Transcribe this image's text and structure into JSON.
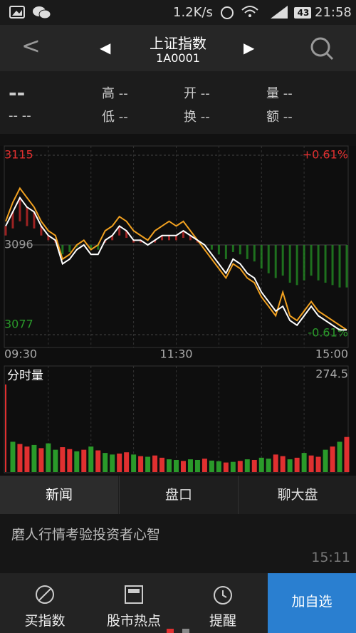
{
  "status_bar": {
    "speed": "1.2K/s",
    "battery": "43",
    "time": "21:58"
  },
  "header": {
    "back": "<",
    "prev": "◀",
    "title": "上证指数",
    "code": "1A0001",
    "next": "▶"
  },
  "quote": {
    "price": "--",
    "change": "-- --",
    "high": "高 --",
    "low": "低 --",
    "open": "开 --",
    "turnover": "换 --",
    "volume": "量 --",
    "amount": "额 --"
  },
  "chart_data": [
    {
      "type": "line",
      "x": [
        0,
        5,
        10,
        15,
        20,
        25,
        30,
        35,
        40,
        45,
        50,
        55,
        60,
        65,
        70,
        75,
        80,
        85,
        90,
        95,
        100,
        105,
        110,
        115,
        120,
        125,
        130,
        135,
        140,
        145,
        150,
        155,
        160,
        165,
        170,
        175,
        180,
        185,
        190,
        195,
        200,
        205,
        210,
        215,
        220,
        225,
        230,
        235,
        240
      ],
      "xlim": [
        0,
        240
      ],
      "xticks": [
        {
          "value": 0,
          "label": "09:30"
        },
        {
          "value": 120,
          "label": "11:30"
        },
        {
          "value": 240,
          "label": "15:00"
        }
      ],
      "ylim": [
        3077,
        3115
      ],
      "yticks": [
        3077,
        3096,
        3115
      ],
      "y2lim": [
        -0.61,
        0.61
      ],
      "y2ticks": [
        {
          "value": 0.61,
          "label": "+0.61%"
        },
        {
          "value": -0.61,
          "label": "-0.61%"
        }
      ],
      "series": [
        {
          "color": "#ffffff",
          "values": [
            3100,
            3103,
            3106,
            3104,
            3103,
            3100,
            3098,
            3097,
            3092,
            3093,
            3095,
            3096,
            3094,
            3094,
            3097,
            3098,
            3100,
            3099,
            3097,
            3097,
            3096,
            3097,
            3098,
            3098,
            3098,
            3099,
            3098,
            3097,
            3096,
            3094,
            3092,
            3090,
            3093,
            3092,
            3090,
            3089,
            3086,
            3084,
            3082,
            3083,
            3080,
            3079,
            3081,
            3083,
            3081,
            3080,
            3079,
            3078,
            3078
          ]
        },
        {
          "color": "#f0a020",
          "values": [
            3101,
            3105,
            3108,
            3106,
            3104,
            3101,
            3099,
            3098,
            3093,
            3094,
            3096,
            3097,
            3095,
            3096,
            3099,
            3100,
            3102,
            3101,
            3099,
            3098,
            3097,
            3099,
            3100,
            3101,
            3100,
            3101,
            3099,
            3097,
            3095,
            3093,
            3091,
            3089,
            3092,
            3091,
            3089,
            3088,
            3085,
            3083,
            3081,
            3086,
            3081,
            3080,
            3082,
            3084,
            3082,
            3081,
            3080,
            3079,
            3078
          ]
        }
      ]
    },
    {
      "type": "bar",
      "title": "分时量",
      "x": [
        0,
        5,
        10,
        15,
        20,
        25,
        30,
        35,
        40,
        45,
        50,
        55,
        60,
        65,
        70,
        75,
        80,
        85,
        90,
        95,
        100,
        105,
        110,
        115,
        120,
        125,
        130,
        135,
        140,
        145,
        150,
        155,
        160,
        165,
        170,
        175,
        180,
        185,
        190,
        195,
        200,
        205,
        210,
        215,
        220,
        225,
        230,
        235,
        240
      ],
      "xlim": [
        0,
        240
      ],
      "ylim": [
        0,
        274.5
      ],
      "yticks": [
        274.5
      ],
      "up_color": "#e03030",
      "down_color": "#2a9a2a",
      "values": [
        274.5,
        95,
        88,
        80,
        85,
        75,
        90,
        70,
        78,
        72,
        65,
        70,
        80,
        68,
        60,
        55,
        58,
        62,
        55,
        50,
        48,
        52,
        45,
        40,
        38,
        35,
        40,
        38,
        42,
        36,
        34,
        30,
        32,
        35,
        40,
        38,
        45,
        42,
        55,
        50,
        40,
        45,
        60,
        52,
        48,
        70,
        80,
        95,
        110
      ],
      "rising": [
        true,
        false,
        true,
        true,
        false,
        true,
        false,
        false,
        true,
        true,
        false,
        true,
        false,
        true,
        false,
        false,
        true,
        true,
        false,
        true,
        false,
        true,
        true,
        false,
        false,
        true,
        false,
        false,
        true,
        false,
        false,
        true,
        false,
        true,
        false,
        true,
        false,
        false,
        true,
        true,
        false,
        true,
        false,
        true,
        true,
        false,
        true,
        false,
        true
      ]
    }
  ],
  "tabs": [
    "新闻",
    "盘口",
    "聊大盘"
  ],
  "news": {
    "headline": "磨人行情考验投资者心智",
    "time": "15:11"
  },
  "nav": [
    "买指数",
    "股市热点",
    "提醒",
    "加自选"
  ]
}
